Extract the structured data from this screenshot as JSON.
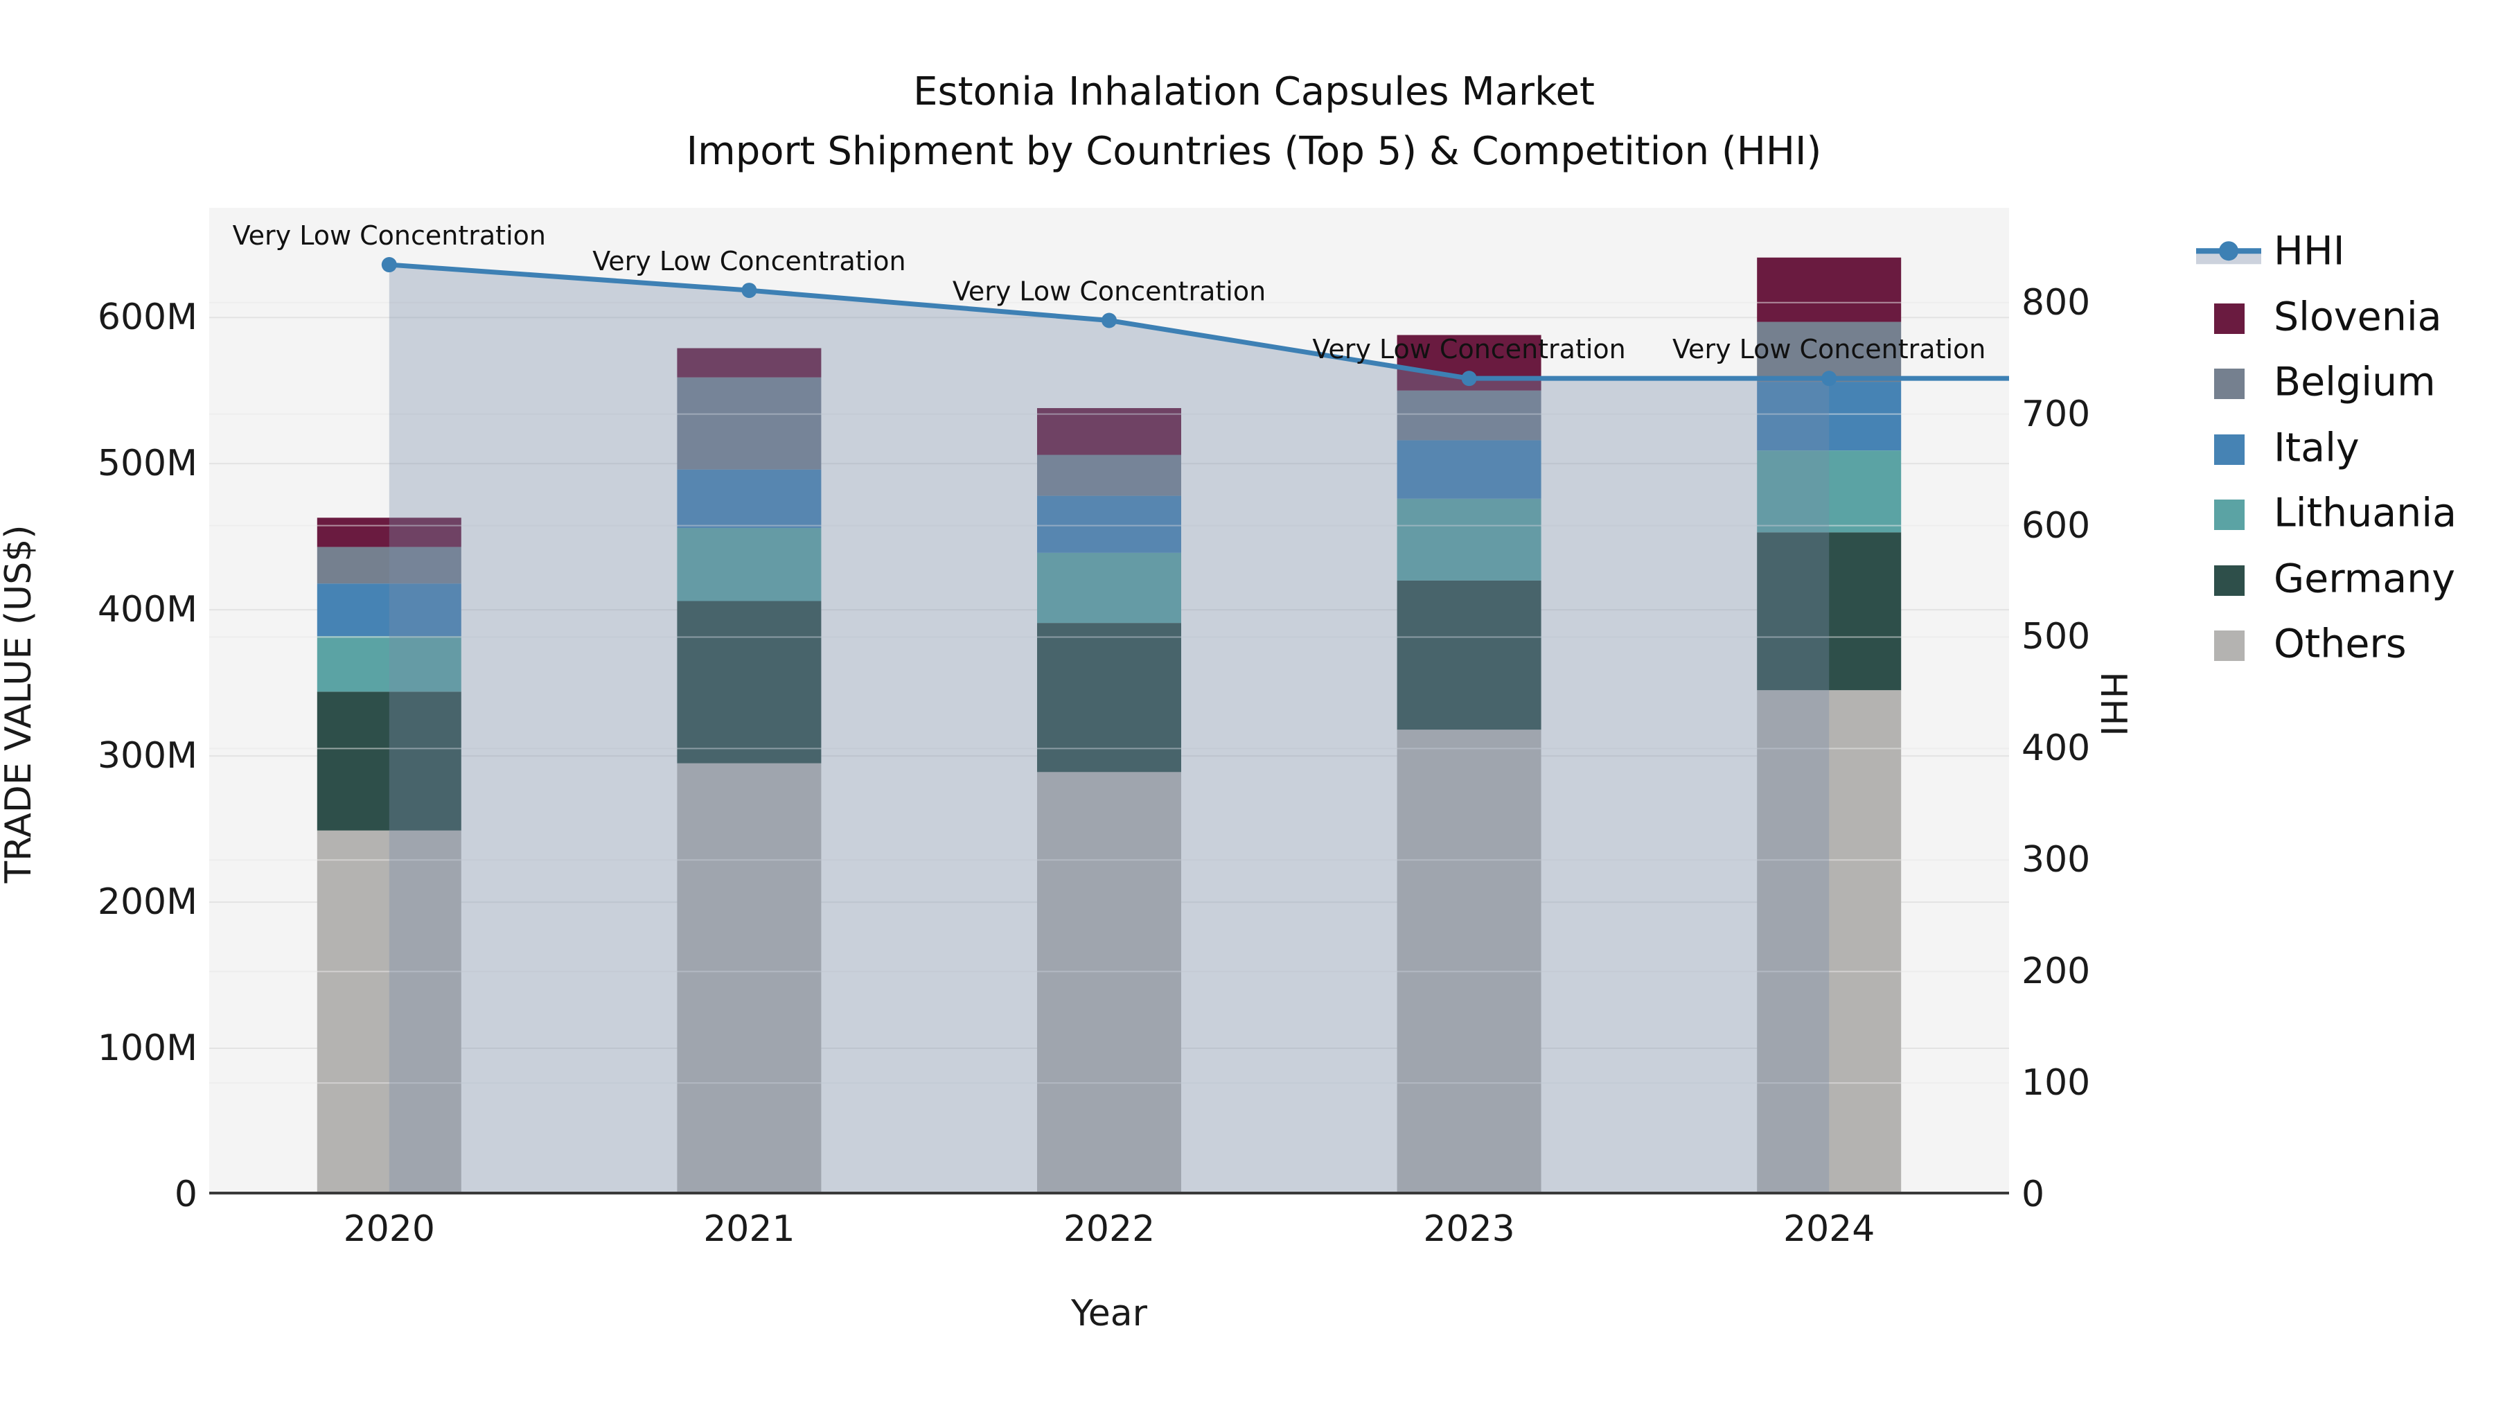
{
  "title": {
    "line1": "Estonia Inhalation Capsules Market",
    "line2": "Import Shipment by Countries (Top 5) & Competition (HHI)"
  },
  "axis_labels": {
    "left": "TRADE VALUE (US$)",
    "right": "HHI",
    "x": "Year"
  },
  "ticks": {
    "left_labels": [
      "0",
      "100M",
      "200M",
      "300M",
      "400M",
      "500M",
      "600M"
    ],
    "left_values": [
      0,
      100,
      200,
      300,
      400,
      500,
      600
    ],
    "right_labels": [
      "0",
      "100",
      "200",
      "300",
      "400",
      "500",
      "600",
      "700",
      "800"
    ],
    "right_values": [
      0,
      100,
      200,
      300,
      400,
      500,
      600,
      700,
      800
    ],
    "x_labels": [
      "2020",
      "2021",
      "2022",
      "2023",
      "2024"
    ]
  },
  "legend": {
    "items": [
      {
        "label": "HHI",
        "type": "line"
      },
      {
        "label": "Slovenia",
        "type": "square",
        "color": "#6a1b40"
      },
      {
        "label": "Belgium",
        "type": "square",
        "color": "#75808f"
      },
      {
        "label": "Italy",
        "type": "square",
        "color": "#4683b4"
      },
      {
        "label": "Lithuania",
        "type": "square",
        "color": "#5ba3a4"
      },
      {
        "label": "Germany",
        "type": "square",
        "color": "#2e4f4a"
      },
      {
        "label": "Others",
        "type": "square",
        "color": "#b4b3b1"
      }
    ]
  },
  "colors": {
    "plot_bg": "#f4f4f4",
    "grid_left": "#e3e3e3",
    "grid_right": "#e9e9e9",
    "axis_line": "#3a3a3a",
    "hhi_line": "#3d80b4",
    "hhi_area": "#788caa",
    "hhi_band_swatch": "#ccd2dd",
    "annotation_text": "#111111"
  },
  "chart_data": {
    "type": "bar+line",
    "title": "Estonia Inhalation Capsules Market — Import Shipment by Countries (Top 5) & Competition (HHI)",
    "categories": [
      "2020",
      "2021",
      "2022",
      "2023",
      "2024"
    ],
    "xlabel": "Year",
    "ylabel_left": "TRADE VALUE (US$)",
    "ylabel_right": "HHI",
    "ylim_left_millions": [
      0,
      675
    ],
    "ylim_right": [
      0,
      885
    ],
    "grid": "on",
    "legend_position": "right",
    "bar_unit": "millions US$",
    "series": [
      {
        "name": "Others",
        "color": "#b4b3b1",
        "values": [
          249,
          295,
          289,
          318,
          345
        ]
      },
      {
        "name": "Germany",
        "color": "#2e4f4a",
        "values": [
          95,
          111,
          102,
          102,
          108
        ]
      },
      {
        "name": "Lithuania",
        "color": "#5ba3a4",
        "values": [
          38,
          50,
          48,
          56,
          56
        ]
      },
      {
        "name": "Italy",
        "color": "#4683b4",
        "values": [
          36,
          40,
          39,
          40,
          47
        ]
      },
      {
        "name": "Belgium",
        "color": "#75808f",
        "values": [
          25,
          63,
          28,
          34,
          41
        ]
      },
      {
        "name": "Slovenia",
        "color": "#6a1b40",
        "values": [
          20,
          20,
          32,
          38,
          44
        ]
      }
    ],
    "bar_totals_millions": [
      463,
      579,
      538,
      588,
      641
    ],
    "hhi": {
      "name": "HHI",
      "values": [
        834,
        811,
        784,
        732,
        732
      ],
      "annotations": [
        "Very Low Concentration",
        "Very Low Concentration",
        "Very Low Concentration",
        "Very Low Concentration",
        "Very Low Concentration"
      ]
    }
  }
}
